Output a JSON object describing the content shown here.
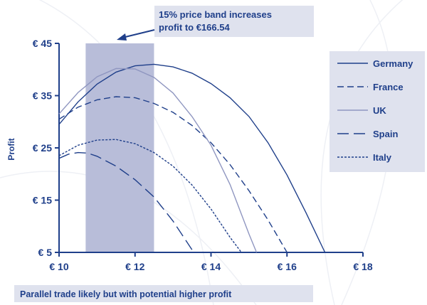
{
  "chart_data": {
    "type": "line",
    "ylabel": "Profit",
    "xlim": [
      10,
      18
    ],
    "ylim": [
      5,
      45
    ],
    "x_ticks": [
      {
        "value": 10,
        "label": "€ 10"
      },
      {
        "value": 12,
        "label": "€ 12"
      },
      {
        "value": 14,
        "label": "€ 14"
      },
      {
        "value": 16,
        "label": "€ 16"
      },
      {
        "value": 18,
        "label": "€ 18"
      }
    ],
    "y_ticks": [
      {
        "value": 5,
        "label": "€ 5"
      },
      {
        "value": 15,
        "label": "€ 15"
      },
      {
        "value": 25,
        "label": "€ 25"
      },
      {
        "value": 35,
        "label": "€ 35"
      },
      {
        "value": 45,
        "label": "€ 45"
      }
    ],
    "band": {
      "x_start": 10.7,
      "x_end": 12.5,
      "color": "#b8bdd9"
    },
    "callout": {
      "lines": [
        "15% price band increases",
        "profit to €166.54"
      ],
      "color": "#dfe2ee",
      "text_color": "#1f3f8a"
    },
    "footer": {
      "text": "Parallel trade likely but with potential higher profit",
      "color": "#dfe2ee",
      "text_color": "#1f3f8a"
    },
    "legend": {
      "placement": "right",
      "bg_color": "#dfe2ee"
    },
    "series": [
      {
        "name": "Germany",
        "style": "solid",
        "color": "#1f3f8a",
        "points": [
          [
            10,
            29.5
          ],
          [
            10.5,
            33.8
          ],
          [
            11,
            37.2
          ],
          [
            11.5,
            39.5
          ],
          [
            12,
            40.7
          ],
          [
            12.5,
            41.0
          ],
          [
            13,
            40.5
          ],
          [
            13.5,
            39.3
          ],
          [
            14,
            37.3
          ],
          [
            14.5,
            34.6
          ],
          [
            15,
            31.0
          ],
          [
            15.5,
            26.0
          ],
          [
            16,
            19.8
          ],
          [
            16.5,
            12.6
          ],
          [
            17,
            5
          ]
        ]
      },
      {
        "name": "France",
        "style": "dashed",
        "color": "#1f3f8a",
        "points": [
          [
            10,
            30.5
          ],
          [
            10.5,
            32.8
          ],
          [
            11,
            34.2
          ],
          [
            11.5,
            34.8
          ],
          [
            12,
            34.6
          ],
          [
            12.5,
            33.5
          ],
          [
            13,
            31.8
          ],
          [
            13.5,
            29.3
          ],
          [
            14,
            26.0
          ],
          [
            14.5,
            21.8
          ],
          [
            15,
            16.8
          ],
          [
            15.5,
            11.2
          ],
          [
            16,
            5
          ]
        ]
      },
      {
        "name": "UK",
        "style": "solid",
        "color": "#8f96c0",
        "points": [
          [
            10,
            31.5
          ],
          [
            10.5,
            35.6
          ],
          [
            11,
            38.6
          ],
          [
            11.5,
            40.2
          ],
          [
            12,
            40.1
          ],
          [
            12.5,
            38.5
          ],
          [
            13,
            35.5
          ],
          [
            13.5,
            31.0
          ],
          [
            14,
            25.5
          ],
          [
            14.5,
            18.0
          ],
          [
            15,
            8.5
          ],
          [
            15.2,
            5
          ]
        ]
      },
      {
        "name": "Spain",
        "style": "longdash",
        "color": "#1f3f8a",
        "points": [
          [
            10,
            23
          ],
          [
            10.25,
            23.8
          ],
          [
            10.5,
            24.1
          ],
          [
            10.75,
            24.0
          ],
          [
            11,
            23.4
          ],
          [
            11.5,
            21.5
          ],
          [
            12,
            18.9
          ],
          [
            12.5,
            15.6
          ],
          [
            13,
            11.0
          ],
          [
            13.5,
            5.5
          ]
        ]
      },
      {
        "name": "Italy",
        "style": "dotted",
        "color": "#1f3f8a",
        "points": [
          [
            10,
            23.5
          ],
          [
            10.5,
            25.5
          ],
          [
            11,
            26.5
          ],
          [
            11.5,
            26.6
          ],
          [
            12,
            25.8
          ],
          [
            12.5,
            24.1
          ],
          [
            13,
            21.5
          ],
          [
            13.5,
            17.9
          ],
          [
            14,
            13.3
          ],
          [
            14.5,
            7.9
          ],
          [
            14.8,
            5
          ]
        ]
      }
    ]
  }
}
